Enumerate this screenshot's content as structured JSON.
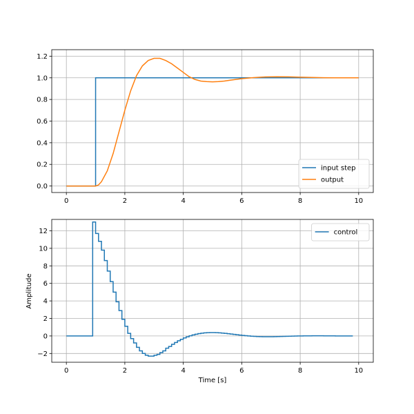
{
  "chart_data": [
    {
      "type": "line",
      "title": "",
      "xlabel": "",
      "ylabel": "",
      "xlim": [
        -0.5,
        10.5
      ],
      "ylim": [
        -0.06,
        1.26
      ],
      "xticks": [
        "0",
        "2",
        "4",
        "6",
        "8",
        "10"
      ],
      "yticks": [
        "0.0",
        "0.2",
        "0.4",
        "0.6",
        "0.8",
        "1.0",
        "1.2"
      ],
      "grid": true,
      "legend_position": "lower-right",
      "series": [
        {
          "name": "input step",
          "color": "#1f77b4",
          "x": [
            0,
            1.0,
            1.0,
            10
          ],
          "y": [
            0,
            0,
            1.0,
            1.0
          ]
        },
        {
          "name": "output",
          "color": "#ff7f0e",
          "x": [
            0,
            1.0,
            1.1,
            1.2,
            1.4,
            1.6,
            1.8,
            2.0,
            2.2,
            2.4,
            2.6,
            2.8,
            3.0,
            3.2,
            3.4,
            3.6,
            3.8,
            4.0,
            4.2,
            4.4,
            4.6,
            4.8,
            5.0,
            5.2,
            5.4,
            5.6,
            5.8,
            6.0,
            6.4,
            6.8,
            7.2,
            7.6,
            8.0,
            8.4,
            8.8,
            9.2,
            9.6,
            10.0
          ],
          "y": [
            0,
            0,
            0.01,
            0.04,
            0.14,
            0.3,
            0.5,
            0.7,
            0.88,
            1.02,
            1.11,
            1.16,
            1.18,
            1.18,
            1.16,
            1.13,
            1.09,
            1.05,
            1.01,
            0.985,
            0.97,
            0.965,
            0.963,
            0.965,
            0.97,
            0.978,
            0.985,
            0.992,
            1.002,
            1.008,
            1.01,
            1.009,
            1.006,
            1.003,
            1.001,
            1.0,
            1.0,
            1.0
          ]
        }
      ]
    },
    {
      "type": "line",
      "title": "",
      "xlabel": "Time [s]",
      "ylabel": "Amplitude",
      "xlim": [
        -0.5,
        10.5
      ],
      "ylim": [
        -3.0,
        13.3
      ],
      "xticks": [
        "0",
        "2",
        "4",
        "6",
        "8",
        "10"
      ],
      "yticks": [
        "−2",
        "0",
        "2",
        "4",
        "6",
        "8",
        "10",
        "12"
      ],
      "grid": true,
      "legend_position": "upper-right",
      "series": [
        {
          "name": "control",
          "color": "#1f77b4",
          "step": true,
          "x": [
            0,
            0.9,
            1.0,
            1.1,
            1.2,
            1.3,
            1.4,
            1.5,
            1.6,
            1.7,
            1.8,
            1.9,
            2.0,
            2.1,
            2.2,
            2.3,
            2.4,
            2.5,
            2.6,
            2.7,
            2.8,
            2.9,
            3.0,
            3.1,
            3.2,
            3.3,
            3.4,
            3.5,
            3.6,
            3.7,
            3.8,
            3.9,
            4.0,
            4.1,
            4.2,
            4.3,
            4.4,
            4.5,
            4.6,
            4.7,
            4.8,
            4.9,
            5.0,
            5.1,
            5.2,
            5.3,
            5.4,
            5.5,
            5.6,
            5.7,
            5.8,
            5.9,
            6.0,
            6.1,
            6.2,
            6.3,
            6.4,
            6.5,
            6.6,
            6.7,
            6.8,
            6.9,
            7.0,
            7.1,
            7.2,
            7.3,
            7.4,
            7.5,
            7.6,
            7.7,
            7.8,
            7.9,
            8.0,
            8.1,
            8.2,
            8.3,
            8.4,
            8.5,
            8.6,
            8.7,
            8.8,
            8.9,
            9.0,
            9.1,
            9.2,
            9.3,
            9.4,
            9.5,
            9.6,
            9.7,
            9.8
          ],
          "y": [
            0,
            13.0,
            11.7,
            10.8,
            9.8,
            8.6,
            7.4,
            6.2,
            5.0,
            3.9,
            2.9,
            1.9,
            1.1,
            0.3,
            -0.3,
            -0.8,
            -1.3,
            -1.7,
            -2.0,
            -2.2,
            -2.3,
            -2.3,
            -2.2,
            -2.1,
            -1.9,
            -1.7,
            -1.4,
            -1.2,
            -0.95,
            -0.75,
            -0.55,
            -0.38,
            -0.22,
            -0.1,
            0.02,
            0.12,
            0.2,
            0.27,
            0.32,
            0.36,
            0.38,
            0.39,
            0.39,
            0.38,
            0.36,
            0.33,
            0.3,
            0.26,
            0.22,
            0.18,
            0.14,
            0.1,
            0.06,
            0.03,
            0.0,
            -0.03,
            -0.05,
            -0.07,
            -0.08,
            -0.09,
            -0.09,
            -0.09,
            -0.09,
            -0.08,
            -0.07,
            -0.06,
            -0.05,
            -0.04,
            -0.03,
            -0.02,
            -0.01,
            0.0,
            0.0,
            0.01,
            0.01,
            0.01,
            0.02,
            0.02,
            0.02,
            0.02,
            0.01,
            0.01,
            0.01,
            0.01,
            0.0,
            0.0,
            0.0,
            0.0,
            0.0,
            0.0,
            0.0
          ]
        }
      ]
    }
  ]
}
